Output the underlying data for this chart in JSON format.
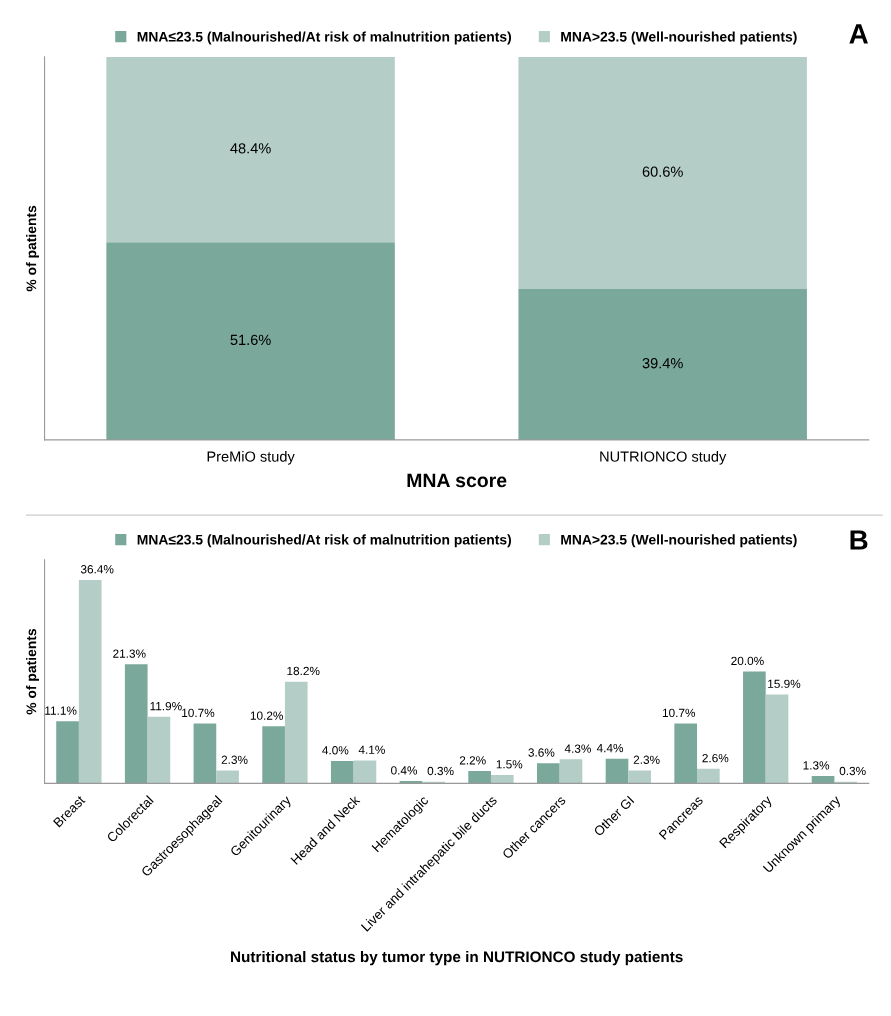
{
  "chart_data": [
    {
      "type": "bar",
      "stacked": true,
      "categories": [
        "PreMiO study",
        "NUTRIONCO study"
      ],
      "xlabel": "MNA score",
      "ylabel": "% of patients",
      "ylim": [
        0,
        100
      ],
      "tick_labels": "x",
      "legend": "top",
      "grid": false,
      "data_labels": true,
      "annotations": [
        "A"
      ],
      "series": [
        {
          "name": "MNA≤23.5 (Malnourished/At risk of malnutrition patients)",
          "color": "#7aa89b",
          "values": [
            51.6,
            39.4
          ],
          "value_labels": [
            "51.6%",
            "39.4%"
          ]
        },
        {
          "name": "MNA>23.5 (Well-nourished patients)",
          "color": "#b5cdc7",
          "values": [
            48.4,
            60.6
          ],
          "value_labels": [
            "48.4%",
            "60.6%"
          ]
        }
      ]
    },
    {
      "type": "bar",
      "categories": [
        "Breast",
        "Colorectal",
        "Gastroesophageal",
        "Genitourinary",
        "Head and Neck",
        "Hematologic",
        "Liver and intrahepatic bile ducts",
        "Other cancers",
        "Other GI",
        "Pancreas",
        "Respiratory",
        "Unknown primary"
      ],
      "xlabel": "Nutritional status by tumor type in NUTRIONCO study patients",
      "ylabel": "% of patients",
      "ylim": [
        0,
        40
      ],
      "tick_labels": "x",
      "legend": "top",
      "grid": false,
      "data_labels": true,
      "annotations": [
        "B"
      ],
      "series": [
        {
          "name": "MNA≤23.5 (Malnourished/At risk of malnutrition patients)",
          "color": "#7aa89b",
          "values": [
            11.1,
            21.3,
            10.7,
            10.2,
            4.0,
            0.4,
            2.2,
            3.6,
            4.4,
            10.7,
            20.0,
            1.3
          ],
          "value_labels": [
            "11.1%",
            "21.3%",
            "10.7%",
            "10.2%",
            "4.0%",
            "0.4%",
            "2.2%",
            "3.6%",
            "4.4%",
            "10.7%",
            "20.0%",
            "1.3%"
          ]
        },
        {
          "name": "MNA>23.5 (Well-nourished patients)",
          "color": "#b5cdc7",
          "values": [
            36.4,
            11.9,
            2.3,
            18.2,
            4.1,
            0.3,
            1.5,
            4.3,
            2.3,
            2.6,
            15.9,
            0.3
          ],
          "value_labels": [
            "36.4%",
            "11.9%",
            "2.3%",
            "18.2%",
            "4.1%",
            "0.3%",
            "1.5%",
            "4.3%",
            "2.3%",
            "2.6%",
            "15.9%",
            "0.3%"
          ]
        }
      ]
    }
  ]
}
